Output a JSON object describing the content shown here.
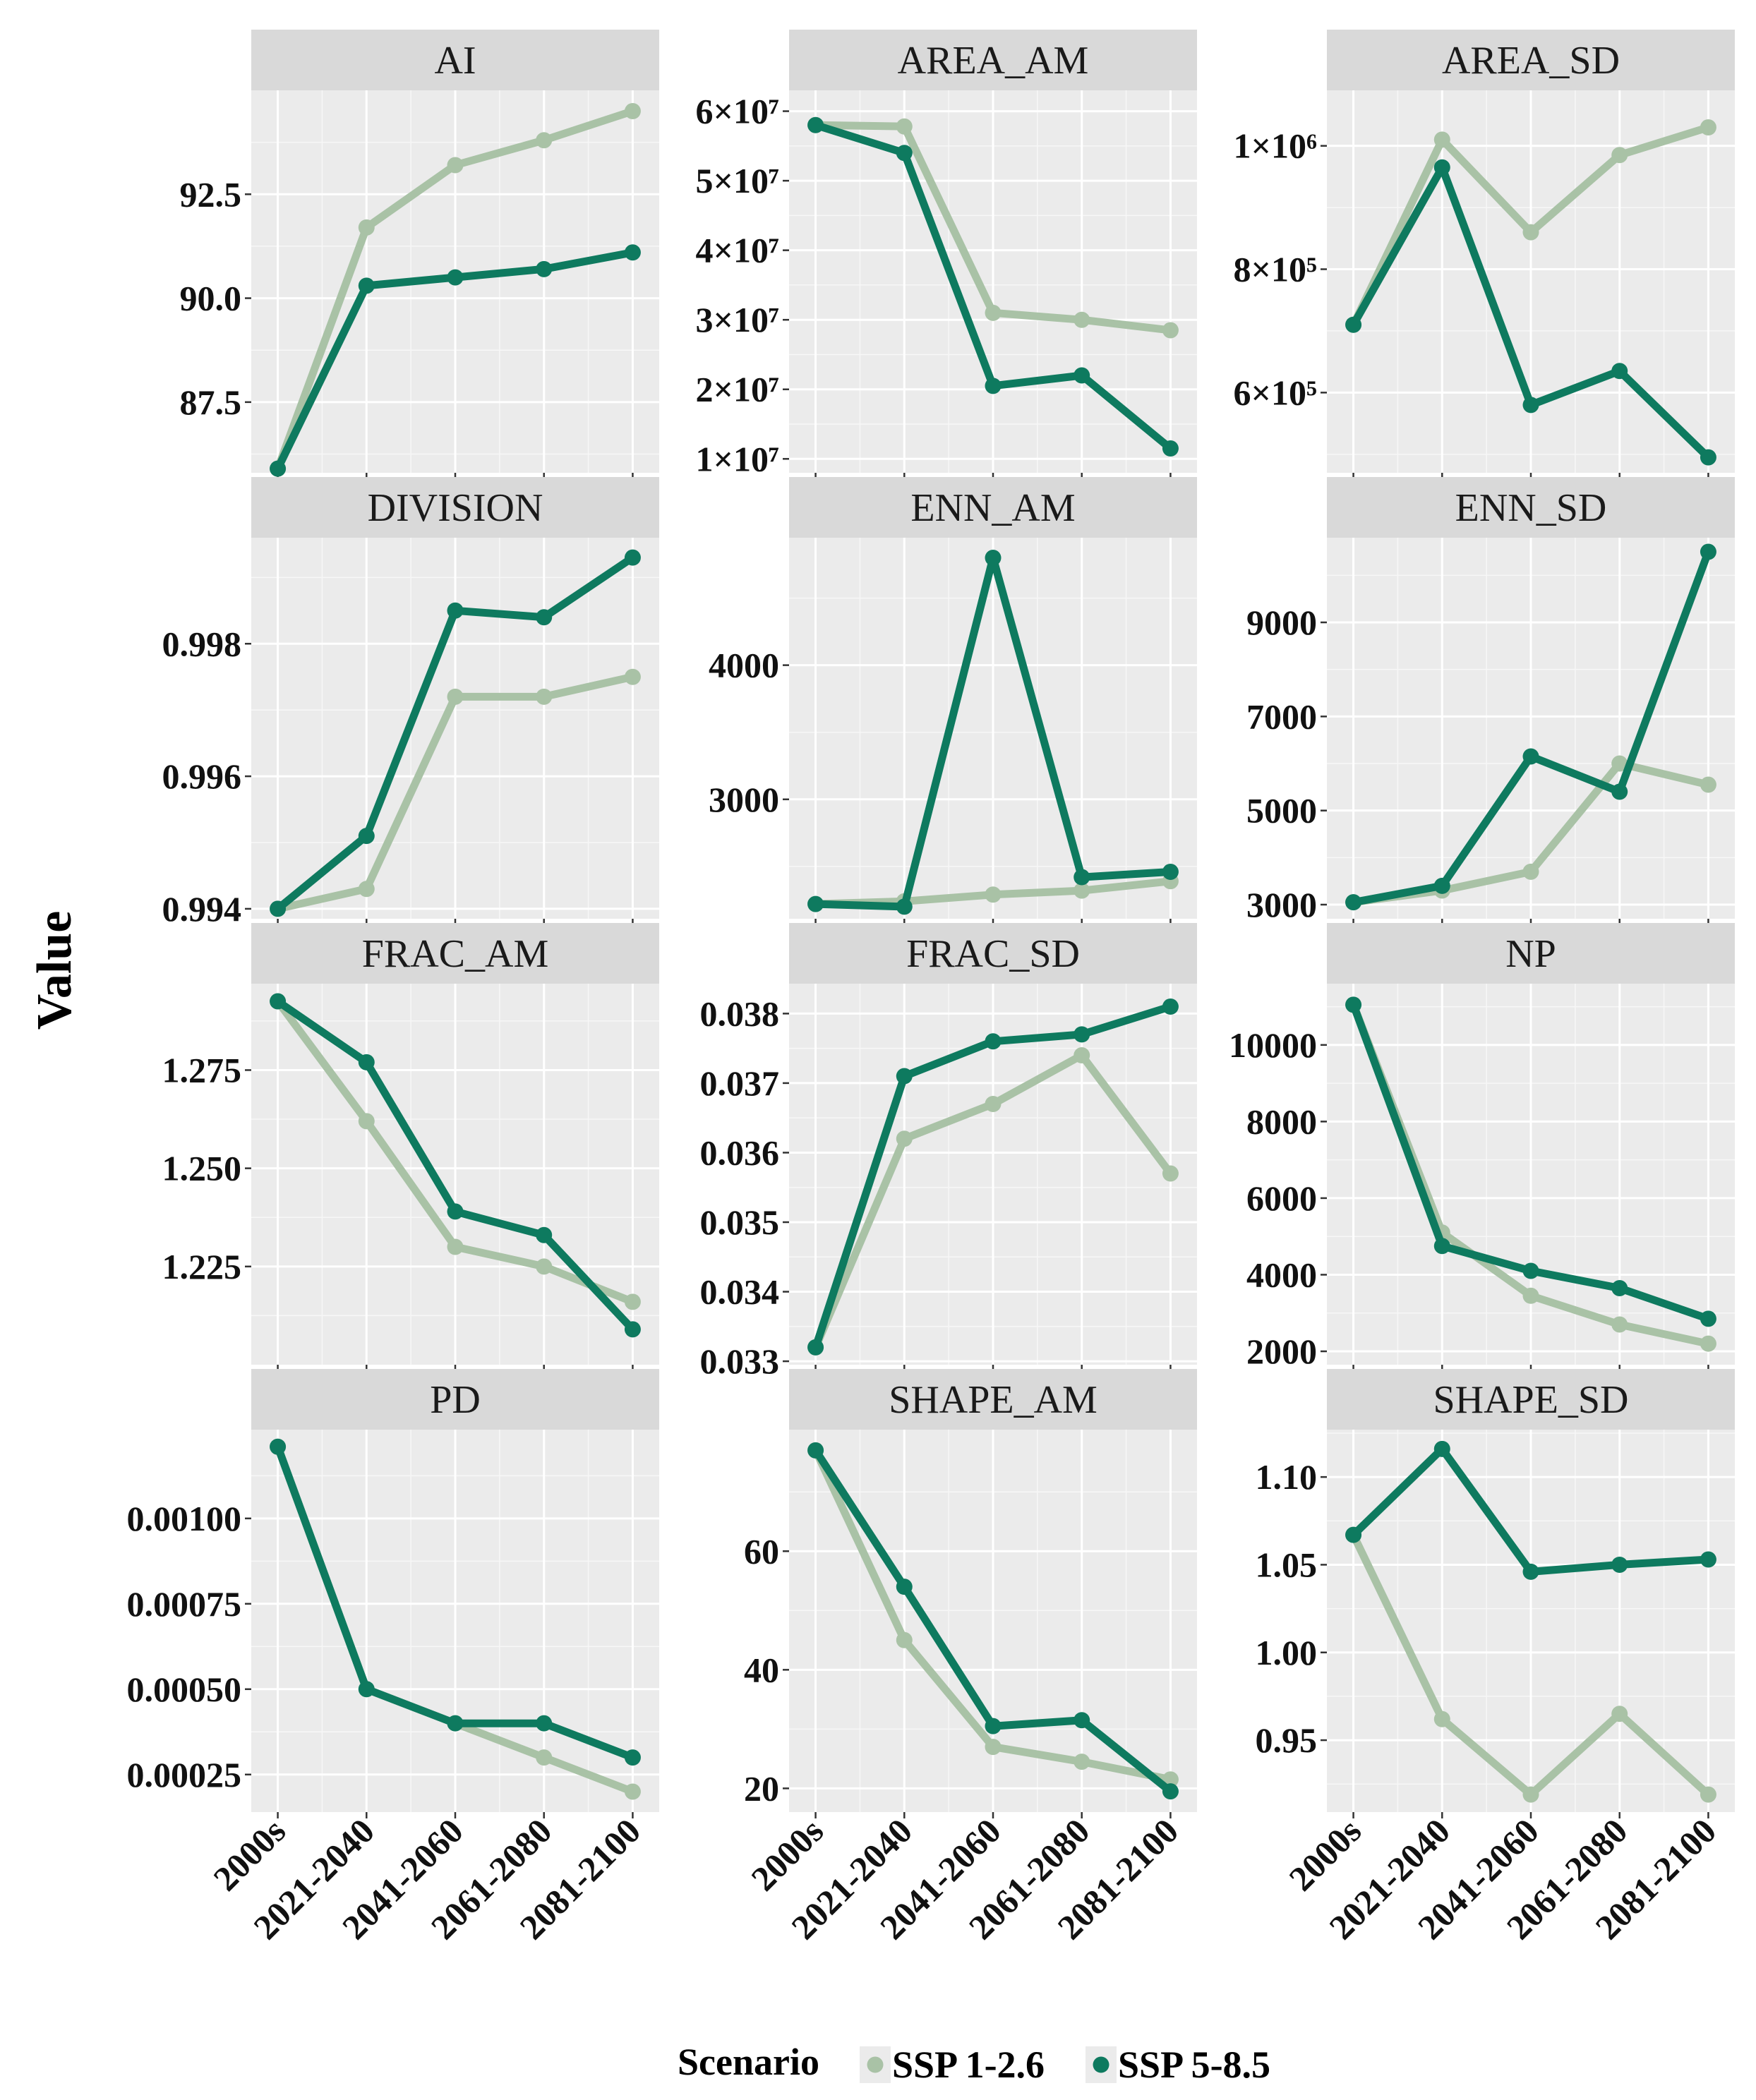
{
  "chart_data": {
    "type": "line",
    "ylabel": "Value",
    "categories": [
      "2000s",
      "2021-2040",
      "2041-2060",
      "2061-2080",
      "2081-2100"
    ],
    "legend": {
      "title": "Scenario",
      "position": "bottom",
      "entries": [
        {
          "name": "SSP 1-2.6",
          "color": "#a9c2a6"
        },
        {
          "name": "SSP 5-8.5",
          "color": "#0e7a5f"
        }
      ]
    },
    "panels": [
      {
        "title": "AI",
        "ylim": [
          85.8,
          95.0
        ],
        "yticks": [
          {
            "v": 87.5,
            "label": "87.5"
          },
          {
            "v": 90.0,
            "label": "90.0"
          },
          {
            "v": 92.5,
            "label": "92.5"
          }
        ],
        "series": [
          {
            "name": "SSP 1-2.6",
            "values": [
              85.9,
              91.7,
              93.2,
              93.8,
              94.5
            ]
          },
          {
            "name": "SSP 5-8.5",
            "values": [
              85.9,
              90.3,
              90.5,
              90.7,
              91.1
            ]
          }
        ]
      },
      {
        "title": "AREA_AM",
        "ylim": [
          8000000.0,
          63000000.0
        ],
        "yticks": [
          {
            "v": 10000000.0,
            "label": "1×10⁷"
          },
          {
            "v": 20000000.0,
            "label": "2×10⁷"
          },
          {
            "v": 30000000.0,
            "label": "3×10⁷"
          },
          {
            "v": 40000000.0,
            "label": "4×10⁷"
          },
          {
            "v": 50000000.0,
            "label": "5×10⁷"
          },
          {
            "v": 60000000.0,
            "label": "6×10⁷"
          }
        ],
        "series": [
          {
            "name": "SSP 1-2.6",
            "values": [
              58000000.0,
              57800000.0,
              31000000.0,
              30000000.0,
              28500000.0
            ]
          },
          {
            "name": "SSP 5-8.5",
            "values": [
              58000000.0,
              54000000.0,
              20500000.0,
              22000000.0,
              11500000.0
            ]
          }
        ]
      },
      {
        "title": "AREA_SD",
        "ylim": [
          470000,
          1090000
        ],
        "yticks": [
          {
            "v": 600000,
            "label": "6×10⁵"
          },
          {
            "v": 800000,
            "label": "8×10⁵"
          },
          {
            "v": 1000000,
            "label": "1×10⁶"
          }
        ],
        "series": [
          {
            "name": "SSP 1-2.6",
            "values": [
              710000,
              1010000,
              860000,
              985000,
              1030000
            ]
          },
          {
            "name": "SSP 5-8.5",
            "values": [
              710000,
              965000,
              580000,
              635000,
              495000
            ]
          }
        ]
      },
      {
        "title": "DIVISION",
        "ylim": [
          0.99385,
          0.9996
        ],
        "yticks": [
          {
            "v": 0.994,
            "label": "0.994"
          },
          {
            "v": 0.996,
            "label": "0.996"
          },
          {
            "v": 0.998,
            "label": "0.998"
          }
        ],
        "series": [
          {
            "name": "SSP 1-2.6",
            "values": [
              0.994,
              0.9943,
              0.9972,
              0.9972,
              0.9975
            ]
          },
          {
            "name": "SSP 5-8.5",
            "values": [
              0.994,
              0.9951,
              0.9985,
              0.9984,
              0.9993
            ]
          }
        ]
      },
      {
        "title": "ENN_AM",
        "ylim": [
          2110,
          4950
        ],
        "yticks": [
          {
            "v": 3000,
            "label": "3000"
          },
          {
            "v": 4000,
            "label": "4000"
          }
        ],
        "series": [
          {
            "name": "SSP 1-2.6",
            "values": [
              2220,
              2240,
              2290,
              2320,
              2390
            ]
          },
          {
            "name": "SSP 5-8.5",
            "values": [
              2220,
              2200,
              4800,
              2420,
              2460
            ]
          }
        ]
      },
      {
        "title": "ENN_SD",
        "ylim": [
          2700,
          10800
        ],
        "yticks": [
          {
            "v": 3000,
            "label": "3000"
          },
          {
            "v": 5000,
            "label": "5000"
          },
          {
            "v": 7000,
            "label": "7000"
          },
          {
            "v": 9000,
            "label": "9000"
          }
        ],
        "series": [
          {
            "name": "SSP 1-2.6",
            "values": [
              3050,
              3300,
              3700,
              6000,
              5550
            ]
          },
          {
            "name": "SSP 5-8.5",
            "values": [
              3050,
              3400,
              6150,
              5400,
              10500
            ]
          }
        ]
      },
      {
        "title": "FRAC_AM",
        "ylim": [
          1.2,
          1.297
        ],
        "yticks": [
          {
            "v": 1.225,
            "label": "1.225"
          },
          {
            "v": 1.25,
            "label": "1.250"
          },
          {
            "v": 1.275,
            "label": "1.275"
          }
        ],
        "series": [
          {
            "name": "SSP 1-2.6",
            "values": [
              1.2925,
              1.262,
              1.23,
              1.225,
              1.216
            ]
          },
          {
            "name": "SSP 5-8.5",
            "values": [
              1.2925,
              1.277,
              1.239,
              1.233,
              1.209
            ]
          }
        ]
      },
      {
        "title": "FRAC_SD",
        "ylim": [
          0.03295,
          0.03843
        ],
        "yticks": [
          {
            "v": 0.033,
            "label": "0.033"
          },
          {
            "v": 0.034,
            "label": "0.034"
          },
          {
            "v": 0.035,
            "label": "0.035"
          },
          {
            "v": 0.036,
            "label": "0.036"
          },
          {
            "v": 0.037,
            "label": "0.037"
          },
          {
            "v": 0.038,
            "label": "0.038"
          }
        ],
        "series": [
          {
            "name": "SSP 1-2.6",
            "values": [
              0.0332,
              0.0362,
              0.0367,
              0.0374,
              0.0357
            ]
          },
          {
            "name": "SSP 5-8.5",
            "values": [
              0.0332,
              0.0371,
              0.0376,
              0.0377,
              0.0381
            ]
          }
        ]
      },
      {
        "title": "NP",
        "ylim": [
          1650,
          11600
        ],
        "yticks": [
          {
            "v": 2000,
            "label": "2000"
          },
          {
            "v": 4000,
            "label": "4000"
          },
          {
            "v": 6000,
            "label": "6000"
          },
          {
            "v": 8000,
            "label": "8000"
          },
          {
            "v": 10000,
            "label": "10000"
          }
        ],
        "series": [
          {
            "name": "SSP 1-2.6",
            "values": [
              11050,
              5100,
              3450,
              2700,
              2200
            ]
          },
          {
            "name": "SSP 5-8.5",
            "values": [
              11050,
              4750,
              4100,
              3650,
              2850
            ]
          }
        ]
      },
      {
        "title": "PD",
        "ylim": [
          0.00014,
          0.00126
        ],
        "yticks": [
          {
            "v": 0.00025,
            "label": "0.00025"
          },
          {
            "v": 0.0005,
            "label": "0.00050"
          },
          {
            "v": 0.00075,
            "label": "0.00075"
          },
          {
            "v": 0.001,
            "label": "0.00100"
          }
        ],
        "series": [
          {
            "name": "SSP 1-2.6",
            "values": [
              0.00121,
              0.0005,
              0.0004,
              0.0003,
              0.0002
            ]
          },
          {
            "name": "SSP 5-8.5",
            "values": [
              0.00121,
              0.0005,
              0.0004,
              0.0004,
              0.0003
            ]
          }
        ]
      },
      {
        "title": "SHAPE_AM",
        "ylim": [
          16.0,
          80.5
        ],
        "yticks": [
          {
            "v": 20,
            "label": "20"
          },
          {
            "v": 40,
            "label": "40"
          },
          {
            "v": 60,
            "label": "60"
          }
        ],
        "series": [
          {
            "name": "SSP 1-2.6",
            "values": [
              77,
              45,
              27,
              24.5,
              21.5
            ]
          },
          {
            "name": "SSP 5-8.5",
            "values": [
              77,
              54,
              30.5,
              31.5,
              19.5
            ]
          }
        ]
      },
      {
        "title": "SHAPE_SD",
        "ylim": [
          0.909,
          1.127
        ],
        "yticks": [
          {
            "v": 0.95,
            "label": "0.95"
          },
          {
            "v": 1.0,
            "label": "1.00"
          },
          {
            "v": 1.05,
            "label": "1.05"
          },
          {
            "v": 1.1,
            "label": "1.10"
          }
        ],
        "series": [
          {
            "name": "SSP 1-2.6",
            "values": [
              1.067,
              0.962,
              0.919,
              0.965,
              0.919
            ]
          },
          {
            "name": "SSP 5-8.5",
            "values": [
              1.067,
              1.116,
              1.046,
              1.05,
              1.053
            ]
          }
        ]
      }
    ]
  }
}
